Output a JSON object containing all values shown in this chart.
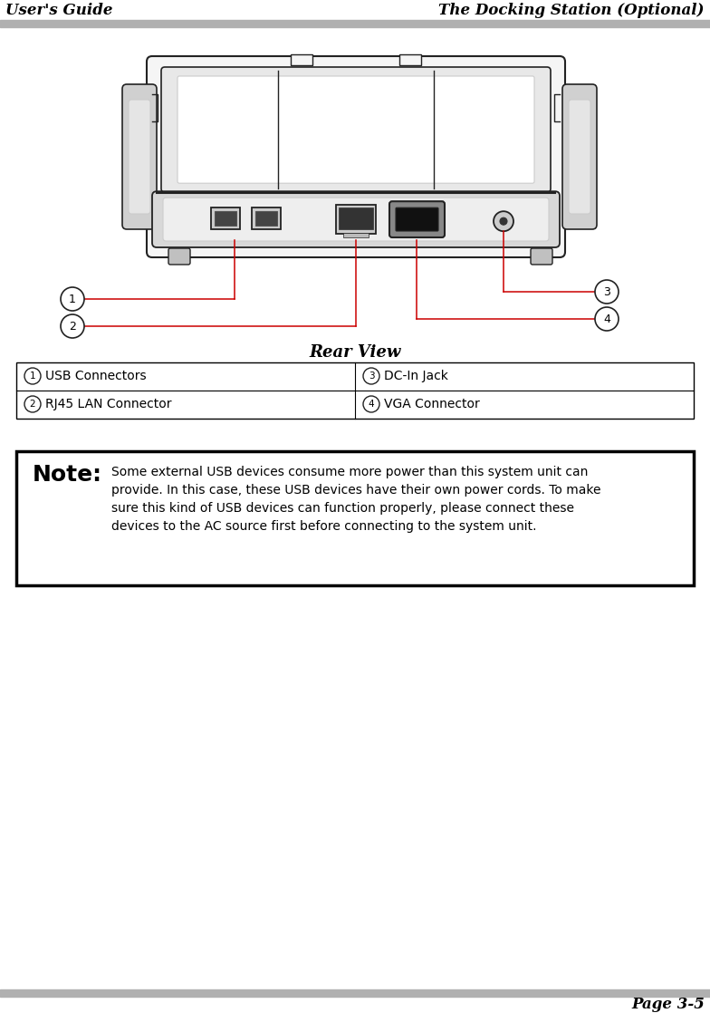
{
  "header_left": "User's Guide",
  "header_right": "The Docking Station (Optional)",
  "footer_right": "Page 3-5",
  "figure_caption": "Rear View",
  "labels": {
    "1": "USB Connectors",
    "2": "RJ45 LAN Connector",
    "3": "DC-In Jack",
    "4": "VGA Connector"
  },
  "note_title": "Note:",
  "note_text": "Some external USB devices consume more power than this system unit can\nprovide. In this case, these USB devices have their own power cords. To make\nsure this kind of USB devices can function properly, please connect these\ndevices to the AC source first before connecting to the system unit.",
  "header_bar_color": "#b0b0b0",
  "footer_bar_color": "#b0b0b0",
  "line_color": "#cc0000",
  "table_border_color": "#000000",
  "note_border_color": "#000000",
  "bg_color": "#ffffff",
  "text_color": "#000000",
  "draw_color": "#222222",
  "draw_light": "#dddddd",
  "draw_mid": "#aaaaaa"
}
